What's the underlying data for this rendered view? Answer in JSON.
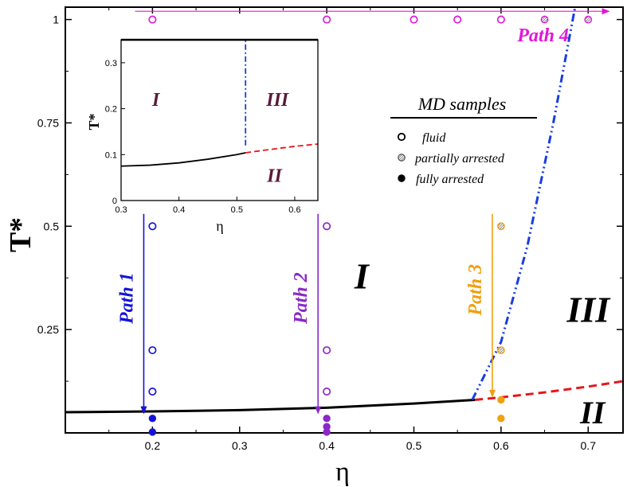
{
  "chart_data": {
    "type": "scatter",
    "xlabel": "η",
    "ylabel": "T*",
    "xlim": [
      0.1,
      0.74
    ],
    "ylim": [
      0.0,
      1.03
    ],
    "x_ticks": [
      0.2,
      0.3,
      0.4,
      0.5,
      0.6,
      0.7
    ],
    "x_tick_labels": [
      "0.2",
      "0.3",
      "0.4",
      "0.5",
      "0.6",
      "0.7"
    ],
    "y_ticks": [
      0.25,
      0.5,
      0.75,
      1.0
    ],
    "y_tick_labels": [
      "0.25",
      "0.5",
      "0.75",
      "1"
    ],
    "regions": [
      {
        "label": "I",
        "x": 0.44,
        "y": 0.38,
        "size": 46
      },
      {
        "label": "III",
        "x": 0.7,
        "y": 0.3,
        "size": 46
      },
      {
        "label": "II",
        "x": 0.705,
        "y": 0.05,
        "size": 40
      }
    ],
    "boundaries": [
      {
        "name": "solid",
        "style": "solid",
        "color": "#000000",
        "x": [
          0.1,
          0.2,
          0.3,
          0.4,
          0.5,
          0.57
        ],
        "y": [
          0.05,
          0.052,
          0.055,
          0.061,
          0.071,
          0.08
        ]
      },
      {
        "name": "dashed",
        "style": "dashed",
        "color": "#e8141b",
        "x": [
          0.57,
          0.6,
          0.65,
          0.7,
          0.74
        ],
        "y": [
          0.08,
          0.086,
          0.098,
          0.112,
          0.125
        ]
      },
      {
        "name": "dash-dot",
        "style": "dashdot",
        "color": "#1a3de0",
        "x": [
          0.567,
          0.6,
          0.63,
          0.66,
          0.685
        ],
        "y": [
          0.08,
          0.22,
          0.45,
          0.75,
          1.03
        ]
      }
    ],
    "paths": [
      {
        "label": "Path 1",
        "color": "#1414d8",
        "x": 0.19,
        "y_start": 0.53,
        "y_end": 0.045,
        "direction": "down"
      },
      {
        "label": "Path 2",
        "color": "#8a28c8",
        "x": 0.39,
        "y_start": 0.53,
        "y_end": 0.045,
        "direction": "down"
      },
      {
        "label": "Path 3",
        "color": "#f0a010",
        "x": 0.59,
        "y_start": 0.53,
        "y_end": 0.085,
        "direction": "down"
      },
      {
        "label": "Path 4",
        "color": "#e018d8",
        "y": 1.02,
        "x_start": 0.18,
        "x_end": 0.725,
        "direction": "right"
      }
    ],
    "series": [
      {
        "name": "Path 1 samples",
        "color": "#1414d8",
        "points": [
          {
            "x": 0.2,
            "y": 0.5,
            "state": "fluid"
          },
          {
            "x": 0.2,
            "y": 0.2,
            "state": "fluid"
          },
          {
            "x": 0.2,
            "y": 0.1,
            "state": "fluid"
          },
          {
            "x": 0.2,
            "y": 0.035,
            "state": "fully arrested"
          },
          {
            "x": 0.2,
            "y": 0.002,
            "state": "fully arrested"
          }
        ]
      },
      {
        "name": "Path 2 samples",
        "color": "#8a28c8",
        "points": [
          {
            "x": 0.4,
            "y": 0.5,
            "state": "fluid"
          },
          {
            "x": 0.4,
            "y": 0.2,
            "state": "fluid"
          },
          {
            "x": 0.4,
            "y": 0.1,
            "state": "fluid"
          },
          {
            "x": 0.4,
            "y": 0.035,
            "state": "fully arrested"
          },
          {
            "x": 0.4,
            "y": 0.015,
            "state": "fully arrested"
          },
          {
            "x": 0.4,
            "y": 0.002,
            "state": "fully arrested"
          }
        ]
      },
      {
        "name": "Path 3 samples",
        "color": "#f0a010",
        "points": [
          {
            "x": 0.6,
            "y": 0.5,
            "state": "partially arrested"
          },
          {
            "x": 0.6,
            "y": 0.2,
            "state": "partially arrested"
          },
          {
            "x": 0.6,
            "y": 0.08,
            "state": "fully arrested"
          },
          {
            "x": 0.6,
            "y": 0.035,
            "state": "fully arrested"
          }
        ]
      },
      {
        "name": "Path 4 samples",
        "color": "#e018d8",
        "points": [
          {
            "x": 0.2,
            "y": 1.0,
            "state": "fluid"
          },
          {
            "x": 0.4,
            "y": 1.0,
            "state": "fluid"
          },
          {
            "x": 0.5,
            "y": 1.0,
            "state": "fluid"
          },
          {
            "x": 0.55,
            "y": 1.0,
            "state": "fluid"
          },
          {
            "x": 0.6,
            "y": 1.0,
            "state": "fluid"
          },
          {
            "x": 0.65,
            "y": 1.0,
            "state": "partially arrested"
          },
          {
            "x": 0.7,
            "y": 1.0,
            "state": "partially arrested"
          }
        ]
      }
    ],
    "legend": {
      "title": "MD samples",
      "entries": [
        {
          "label": "fluid",
          "marker": "open"
        },
        {
          "label": "partially arrested",
          "marker": "hatched"
        },
        {
          "label": "fully arrested",
          "marker": "filled"
        }
      ]
    },
    "inset": {
      "xlabel": "η",
      "ylabel": "T*",
      "xlim": [
        0.3,
        0.64
      ],
      "ylim": [
        0.0,
        0.35
      ],
      "x_ticks": [
        0.3,
        0.4,
        0.5,
        0.6
      ],
      "x_tick_labels": [
        "0.3",
        "0.4",
        "0.5",
        "0.6"
      ],
      "y_ticks": [
        0.0,
        0.1,
        0.2,
        0.3
      ],
      "y_tick_labels": [
        "0",
        "0.1",
        "0.2",
        "0.3"
      ],
      "regions": [
        {
          "label": "I",
          "x": 0.36,
          "y": 0.22
        },
        {
          "label": "III",
          "x": 0.57,
          "y": 0.22
        },
        {
          "label": "II",
          "x": 0.565,
          "y": 0.055
        }
      ],
      "boundaries": [
        {
          "name": "solid",
          "style": "solid",
          "color": "#000000",
          "x": [
            0.3,
            0.35,
            0.4,
            0.45,
            0.5,
            0.515
          ],
          "y": [
            0.075,
            0.077,
            0.082,
            0.09,
            0.1,
            0.104
          ]
        },
        {
          "name": "dashed",
          "style": "dashed",
          "color": "#e8141b",
          "x": [
            0.515,
            0.55,
            0.6,
            0.64
          ],
          "y": [
            0.104,
            0.11,
            0.118,
            0.123
          ]
        },
        {
          "name": "dash-dot",
          "style": "dashdot",
          "color": "#1a3de0",
          "x": [
            0.515,
            0.515
          ],
          "y": [
            0.12,
            0.35
          ]
        }
      ]
    }
  }
}
